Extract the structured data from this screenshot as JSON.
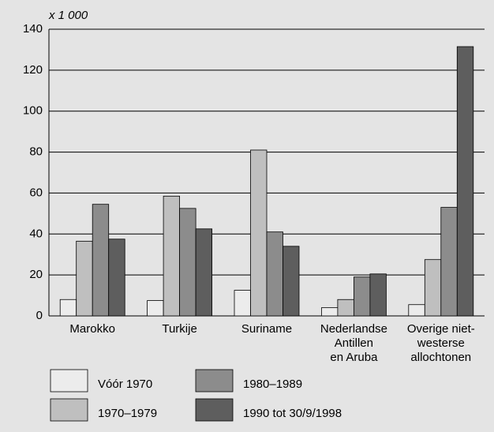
{
  "chart_data": {
    "type": "bar",
    "y_axis_label": "x 1 000",
    "categories": [
      "Marokko",
      "Turkije",
      "Suriname",
      "Nederlandse\nAntillen\nen Aruba",
      "Overige niet-\nwesterse\nallochtonen"
    ],
    "series": [
      {
        "name": "Vóór 1970",
        "color": "#ececec",
        "values": [
          8,
          7.5,
          12.5,
          4,
          5.5
        ]
      },
      {
        "name": "1970–1979",
        "color": "#bfbfbf",
        "values": [
          36.5,
          58.5,
          81,
          8,
          27.5
        ]
      },
      {
        "name": "1980–1989",
        "color": "#8c8c8c",
        "values": [
          54.5,
          52.5,
          41,
          19,
          53
        ]
      },
      {
        "name": "1990 tot 30/9/1998",
        "color": "#5e5e5e",
        "values": [
          37.5,
          42.5,
          34,
          20.5,
          131.5
        ]
      }
    ],
    "ylim": [
      0,
      140
    ],
    "yticks": [
      0,
      20,
      40,
      60,
      80,
      100,
      120,
      140
    ],
    "grid": true
  }
}
